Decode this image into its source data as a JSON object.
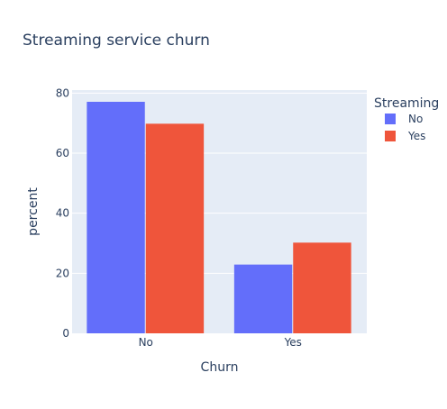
{
  "chart_data": {
    "type": "bar",
    "title": "Streaming service churn",
    "xlabel": "Churn",
    "ylabel": "percent",
    "categories": [
      "No",
      "Yes"
    ],
    "series": [
      {
        "name": "No",
        "values": [
          77.1,
          22.9
        ],
        "color": "#636efa"
      },
      {
        "name": "Yes",
        "values": [
          69.8,
          30.2
        ],
        "color": "#ef553b"
      }
    ],
    "ylim": [
      0,
      81
    ],
    "yticks": [
      0,
      20,
      40,
      60,
      80
    ],
    "ytick_labels": [
      "0",
      "20",
      "40",
      "60",
      "80"
    ],
    "legend": {
      "title": "Streaming",
      "placement": "top-right"
    },
    "grid": true,
    "plot_background": "#e5ecf6",
    "grid_color": "#ffffff"
  }
}
